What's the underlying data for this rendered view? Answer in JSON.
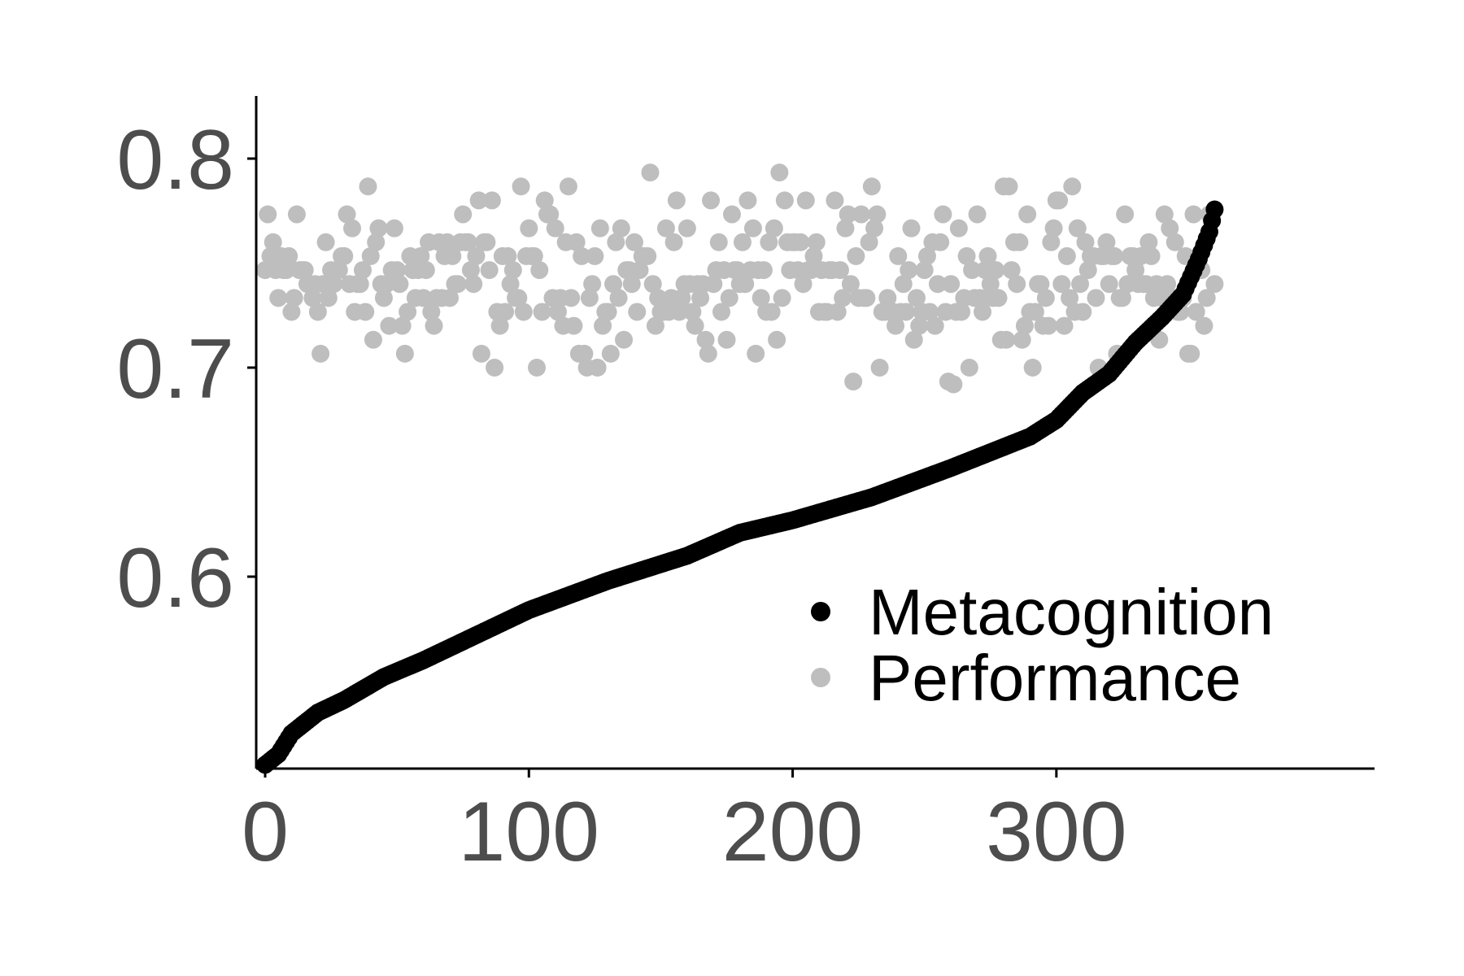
{
  "chart_data": {
    "type": "scatter",
    "title": "",
    "xlabel": "",
    "ylabel": "",
    "xlim": [
      -3,
      363
    ],
    "ylim": [
      0.509,
      0.83
    ],
    "x_ticks": [
      0,
      100,
      200,
      300
    ],
    "x_tick_labels": [
      "0",
      "100",
      "200",
      "300"
    ],
    "y_ticks": [
      0.6,
      0.7,
      0.8
    ],
    "y_tick_labels": [
      "0.6",
      "0.7",
      "0.8"
    ],
    "grid": false,
    "legend_position": "bottom-right inside plot",
    "n_points_per_series": 361,
    "series": [
      {
        "name": "Metacognition",
        "color": "#000000",
        "description_curve_keypoints": [
          [
            0,
            0.51
          ],
          [
            5,
            0.515
          ],
          [
            10,
            0.525
          ],
          [
            20,
            0.535
          ],
          [
            30,
            0.541
          ],
          [
            45,
            0.552
          ],
          [
            60,
            0.56
          ],
          [
            80,
            0.572
          ],
          [
            100,
            0.584
          ],
          [
            130,
            0.598
          ],
          [
            160,
            0.61
          ],
          [
            180,
            0.621
          ],
          [
            200,
            0.627
          ],
          [
            230,
            0.638
          ],
          [
            260,
            0.652
          ],
          [
            290,
            0.667
          ],
          [
            300,
            0.675
          ],
          [
            310,
            0.688
          ],
          [
            320,
            0.697
          ],
          [
            330,
            0.712
          ],
          [
            340,
            0.724
          ],
          [
            348,
            0.735
          ],
          [
            354,
            0.752
          ],
          [
            358,
            0.765
          ],
          [
            361,
            0.781
          ]
        ]
      },
      {
        "name": "Performance",
        "color": "#bebebe",
        "mean": 0.743,
        "spread": 0.028,
        "min": 0.692,
        "max": 0.8
      }
    ],
    "legend": [
      {
        "label": "Metacognition",
        "color": "#000000"
      },
      {
        "label": "Performance",
        "color": "#bebebe"
      }
    ]
  }
}
